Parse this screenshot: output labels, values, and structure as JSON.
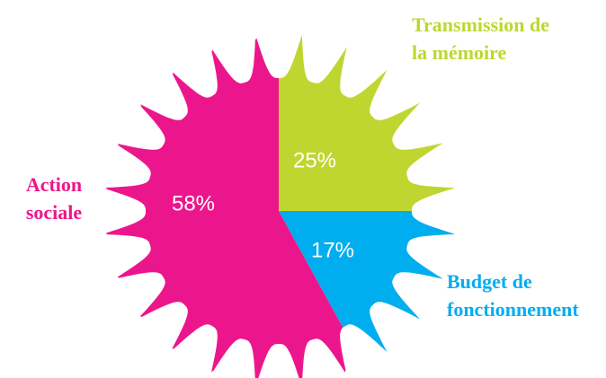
{
  "chart_data": {
    "type": "pie",
    "categories": [
      "Transmission de la mémoire",
      "Budget de fonctionnement",
      "Action sociale"
    ],
    "values": [
      25,
      17,
      58
    ],
    "value_labels": [
      "25%",
      "17%",
      "58%"
    ],
    "colors": [
      "#bfd630",
      "#00aeef",
      "#ec168c"
    ]
  }
}
